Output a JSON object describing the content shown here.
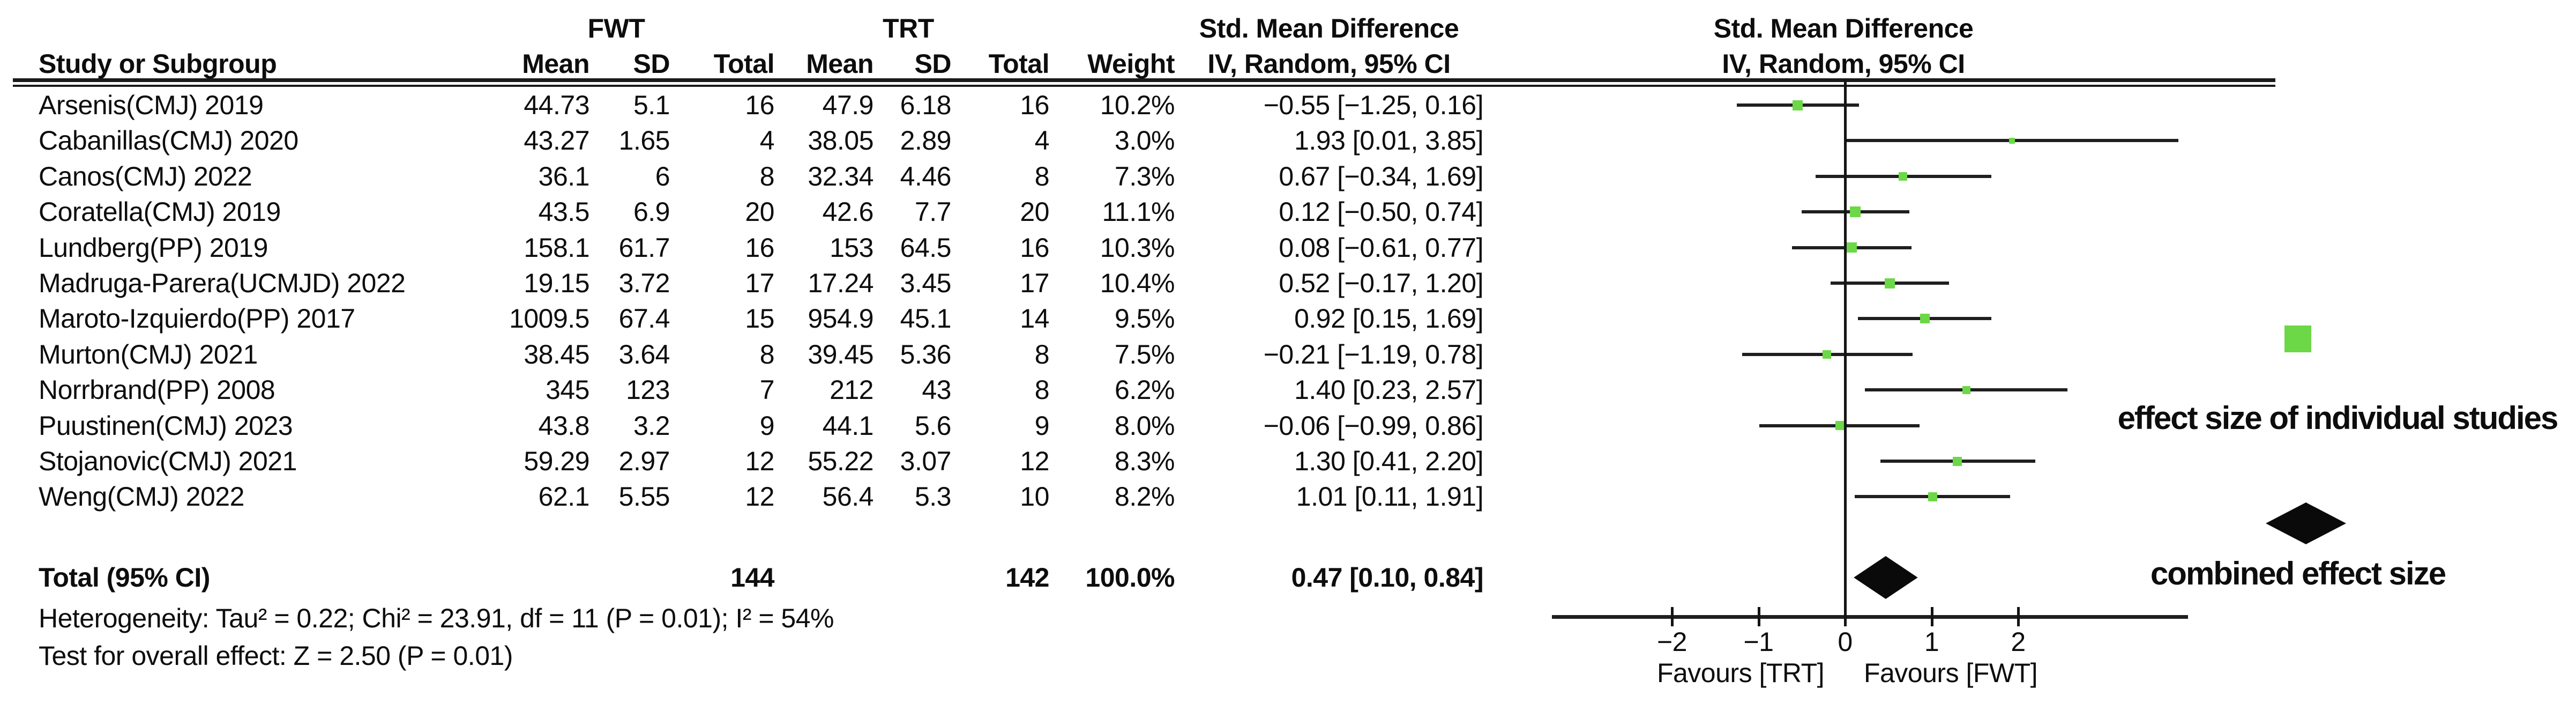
{
  "header": {
    "study_col": "Study or Subgroup",
    "group_fwt": "FWT",
    "group_trt": "TRT",
    "mean": "Mean",
    "sd": "SD",
    "total": "Total",
    "weight": "Weight",
    "smd_col_title": "Std. Mean Difference",
    "smd_col_sub": "IV, Random, 95% CI",
    "plot_title": "Std. Mean Difference",
    "plot_sub": "IV, Random, 95% CI"
  },
  "chart_data": {
    "type": "forest",
    "title": "Std. Mean Difference, IV, Random, 95% CI",
    "effect_measure": "Std. Mean Difference",
    "model": "IV, Random, 95% CI",
    "xlim": [
      -3.4,
      3.95
    ],
    "x_tick_values": [
      -2,
      -1,
      0,
      1,
      2
    ],
    "x_tick_labels": [
      "−2",
      "−1",
      "0",
      "1",
      "2"
    ],
    "favours_left": "Favours [TRT]",
    "favours_right": "Favours [FWT]",
    "studies": [
      {
        "name": "Arsenis(CMJ) 2019",
        "fwt_mean": "44.73",
        "fwt_sd": "5.1",
        "fwt_total": "16",
        "trt_mean": "47.9",
        "trt_sd": "6.18",
        "trt_total": "16",
        "weight": "10.2%",
        "weight_val": 10.2,
        "ci_text": "−0.55 [−1.25, 0.16]",
        "smd": -0.55,
        "ci_low": -1.25,
        "ci_high": 0.16
      },
      {
        "name": "Cabanillas(CMJ) 2020",
        "fwt_mean": "43.27",
        "fwt_sd": "1.65",
        "fwt_total": "4",
        "trt_mean": "38.05",
        "trt_sd": "2.89",
        "trt_total": "4",
        "weight": "3.0%",
        "weight_val": 3.0,
        "ci_text": "1.93 [0.01, 3.85]",
        "smd": 1.93,
        "ci_low": 0.01,
        "ci_high": 3.85
      },
      {
        "name": "Canos(CMJ) 2022",
        "fwt_mean": "36.1",
        "fwt_sd": "6",
        "fwt_total": "8",
        "trt_mean": "32.34",
        "trt_sd": "4.46",
        "trt_total": "8",
        "weight": "7.3%",
        "weight_val": 7.3,
        "ci_text": "0.67 [−0.34, 1.69]",
        "smd": 0.67,
        "ci_low": -0.34,
        "ci_high": 1.69
      },
      {
        "name": "Coratella(CMJ) 2019",
        "fwt_mean": "43.5",
        "fwt_sd": "6.9",
        "fwt_total": "20",
        "trt_mean": "42.6",
        "trt_sd": "7.7",
        "trt_total": "20",
        "weight": "11.1%",
        "weight_val": 11.1,
        "ci_text": "0.12 [−0.50, 0.74]",
        "smd": 0.12,
        "ci_low": -0.5,
        "ci_high": 0.74
      },
      {
        "name": "Lundberg(PP) 2019",
        "fwt_mean": "158.1",
        "fwt_sd": "61.7",
        "fwt_total": "16",
        "trt_mean": "153",
        "trt_sd": "64.5",
        "trt_total": "16",
        "weight": "10.3%",
        "weight_val": 10.3,
        "ci_text": "0.08 [−0.61, 0.77]",
        "smd": 0.08,
        "ci_low": -0.61,
        "ci_high": 0.77
      },
      {
        "name": "Madruga-Parera(UCMJD) 2022",
        "fwt_mean": "19.15",
        "fwt_sd": "3.72",
        "fwt_total": "17",
        "trt_mean": "17.24",
        "trt_sd": "3.45",
        "trt_total": "17",
        "weight": "10.4%",
        "weight_val": 10.4,
        "ci_text": "0.52 [−0.17, 1.20]",
        "smd": 0.52,
        "ci_low": -0.17,
        "ci_high": 1.2
      },
      {
        "name": "Maroto-Izquierdo(PP) 2017",
        "fwt_mean": "1009.5",
        "fwt_sd": "67.4",
        "fwt_total": "15",
        "trt_mean": "954.9",
        "trt_sd": "45.1",
        "trt_total": "14",
        "weight": "9.5%",
        "weight_val": 9.5,
        "ci_text": "0.92 [0.15, 1.69]",
        "smd": 0.92,
        "ci_low": 0.15,
        "ci_high": 1.69
      },
      {
        "name": "Murton(CMJ) 2021",
        "fwt_mean": "38.45",
        "fwt_sd": "3.64",
        "fwt_total": "8",
        "trt_mean": "39.45",
        "trt_sd": "5.36",
        "trt_total": "8",
        "weight": "7.5%",
        "weight_val": 7.5,
        "ci_text": "−0.21 [−1.19, 0.78]",
        "smd": -0.21,
        "ci_low": -1.19,
        "ci_high": 0.78
      },
      {
        "name": "Norrbrand(PP) 2008",
        "fwt_mean": "345",
        "fwt_sd": "123",
        "fwt_total": "7",
        "trt_mean": "212",
        "trt_sd": "43",
        "trt_total": "8",
        "weight": "6.2%",
        "weight_val": 6.2,
        "ci_text": "1.40 [0.23, 2.57]",
        "smd": 1.4,
        "ci_low": 0.23,
        "ci_high": 2.57
      },
      {
        "name": "Puustinen(CMJ) 2023",
        "fwt_mean": "43.8",
        "fwt_sd": "3.2",
        "fwt_total": "9",
        "trt_mean": "44.1",
        "trt_sd": "5.6",
        "trt_total": "9",
        "weight": "8.0%",
        "weight_val": 8.0,
        "ci_text": "−0.06 [−0.99, 0.86]",
        "smd": -0.06,
        "ci_low": -0.99,
        "ci_high": 0.86
      },
      {
        "name": "Stojanovic(CMJ) 2021",
        "fwt_mean": "59.29",
        "fwt_sd": "2.97",
        "fwt_total": "12",
        "trt_mean": "55.22",
        "trt_sd": "3.07",
        "trt_total": "12",
        "weight": "8.3%",
        "weight_val": 8.3,
        "ci_text": "1.30 [0.41, 2.20]",
        "smd": 1.3,
        "ci_low": 0.41,
        "ci_high": 2.2
      },
      {
        "name": "Weng(CMJ) 2022",
        "fwt_mean": "62.1",
        "fwt_sd": "5.55",
        "fwt_total": "12",
        "trt_mean": "56.4",
        "trt_sd": "5.3",
        "trt_total": "10",
        "weight": "8.2%",
        "weight_val": 8.2,
        "ci_text": "1.01 [0.11, 1.91]",
        "smd": 1.01,
        "ci_low": 0.11,
        "ci_high": 1.91
      }
    ],
    "total": {
      "label": "Total (95% CI)",
      "fwt_total": "144",
      "trt_total": "142",
      "weight": "100.0%",
      "ci_text": "0.47 [0.10, 0.84]",
      "smd": 0.47,
      "ci_low": 0.1,
      "ci_high": 0.84
    },
    "heterogeneity": "Heterogeneity: Tau² = 0.22; Chi² = 23.91, df = 11 (P = 0.01); I² = 54%",
    "overall_effect": "Test for overall effect: Z = 2.50 (P = 0.01)"
  },
  "legend": {
    "individual_label": "effect size of individual studies",
    "combined_label": "combined effect size",
    "marker_color": "#6cd847",
    "diamond_color": "#0a0a0a"
  }
}
